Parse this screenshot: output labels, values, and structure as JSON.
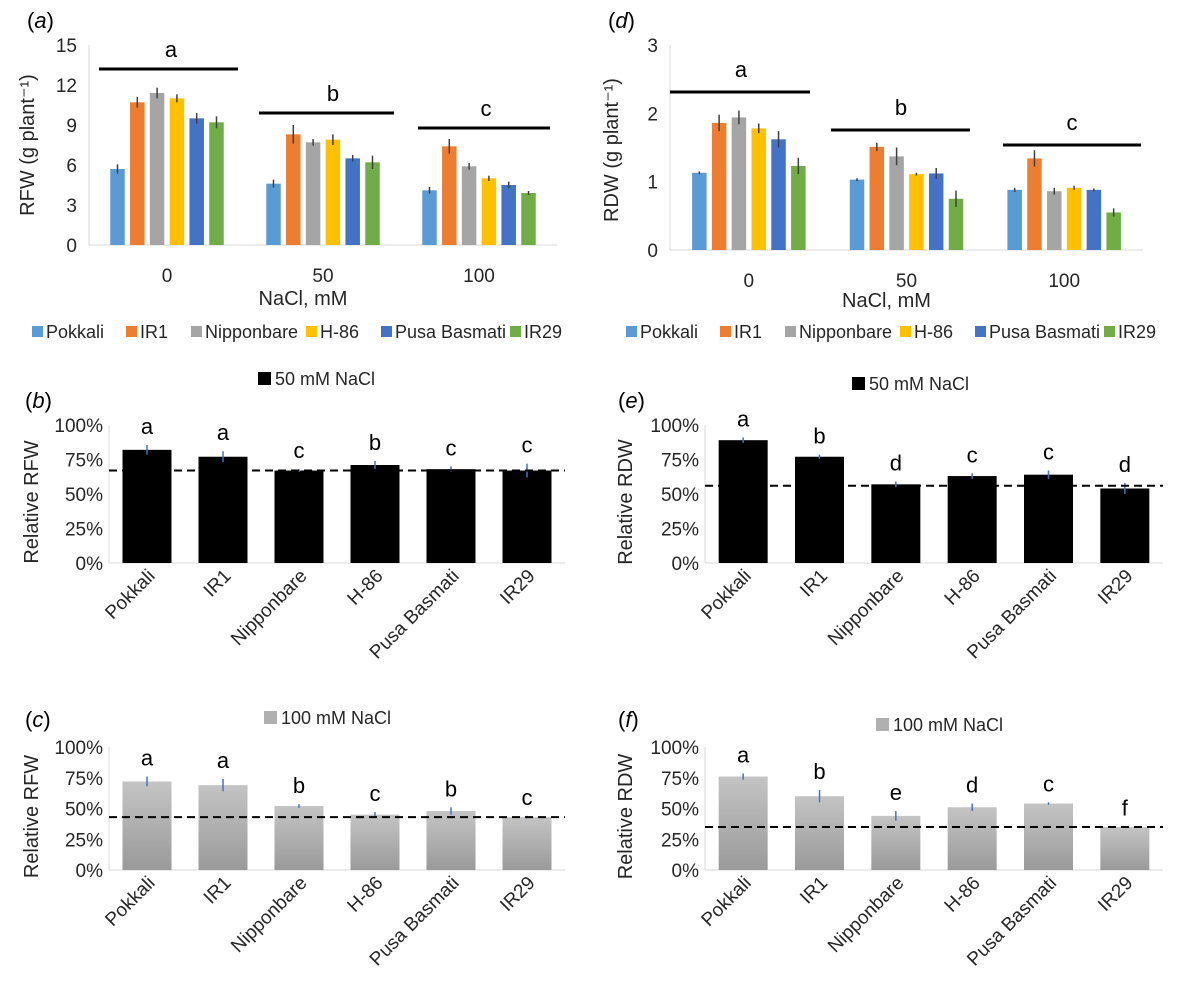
{
  "chart_data": [
    {
      "panel": "(a)",
      "type": "bar",
      "ylabel": "RFW (g plant⁻¹)",
      "xlabel": "NaCl, mM",
      "ylim": [
        0,
        15
      ],
      "yticks": [
        "0",
        "3",
        "6",
        "9",
        "12",
        "15"
      ],
      "categories": [
        "0",
        "50",
        "100"
      ],
      "group_letters": [
        "a",
        "b",
        "c"
      ],
      "series": [
        {
          "name": "Pokkali",
          "color": "#5B9BD5",
          "values": [
            5.7,
            4.6,
            4.1
          ],
          "err": [
            0.35,
            0.3,
            0.25
          ]
        },
        {
          "name": "IR1",
          "color": "#ED7D31",
          "values": [
            10.7,
            8.3,
            7.4
          ],
          "err": [
            0.4,
            0.7,
            0.55
          ]
        },
        {
          "name": "Nipponbare",
          "color": "#A5A5A5",
          "values": [
            11.4,
            7.7,
            5.9
          ],
          "err": [
            0.4,
            0.25,
            0.25
          ]
        },
        {
          "name": "H-86",
          "color": "#FFC000",
          "values": [
            11.0,
            7.9,
            5.0
          ],
          "err": [
            0.3,
            0.4,
            0.2
          ]
        },
        {
          "name": "Pusa Basmati",
          "color": "#4472C4",
          "values": [
            9.5,
            6.5,
            4.5
          ],
          "err": [
            0.4,
            0.25,
            0.25
          ]
        },
        {
          "name": "IR29",
          "color": "#70AD47",
          "values": [
            9.2,
            6.2,
            3.9
          ],
          "err": [
            0.45,
            0.5,
            0.15
          ]
        }
      ]
    },
    {
      "panel": "(d)",
      "type": "bar",
      "ylabel": "RDW (g plant⁻¹)",
      "xlabel": "NaCl, mM",
      "ylim": [
        0,
        3
      ],
      "yticks": [
        "0",
        "1",
        "2",
        "3"
      ],
      "categories": [
        "0",
        "50",
        "100"
      ],
      "group_letters": [
        "a",
        "b",
        "c"
      ],
      "series": [
        {
          "name": "Pokkali",
          "color": "#5B9BD5",
          "values": [
            1.13,
            1.03,
            0.88
          ],
          "err": [
            0.02,
            0.02,
            0.03
          ]
        },
        {
          "name": "IR1",
          "color": "#ED7D31",
          "values": [
            1.86,
            1.51,
            1.34
          ],
          "err": [
            0.12,
            0.06,
            0.12
          ]
        },
        {
          "name": "Nipponbare",
          "color": "#A5A5A5",
          "values": [
            1.94,
            1.37,
            0.86
          ],
          "err": [
            0.1,
            0.13,
            0.05
          ]
        },
        {
          "name": "H-86",
          "color": "#FFC000",
          "values": [
            1.78,
            1.11,
            0.91
          ],
          "err": [
            0.07,
            0.02,
            0.03
          ]
        },
        {
          "name": "Pusa Basmati",
          "color": "#4472C4",
          "values": [
            1.62,
            1.12,
            0.88
          ],
          "err": [
            0.12,
            0.08,
            0.02
          ]
        },
        {
          "name": "IR29",
          "color": "#70AD47",
          "values": [
            1.23,
            0.75,
            0.55
          ],
          "err": [
            0.12,
            0.12,
            0.06
          ]
        }
      ]
    },
    {
      "panel": "(b)",
      "type": "bar",
      "legend": "50 mM NaCl",
      "fill": "#000000",
      "ylabel": "Relative RFW",
      "ylim": [
        0,
        1
      ],
      "yticks": [
        "0%",
        "25%",
        "50%",
        "75%",
        "100%"
      ],
      "categories": [
        "Pokkali",
        "IR1",
        "Nipponbare",
        "H-86",
        "Pusa Basmati",
        "IR29"
      ],
      "values": [
        0.82,
        0.77,
        0.67,
        0.71,
        0.68,
        0.67
      ],
      "err": [
        0.035,
        0.04,
        0.01,
        0.03,
        0.02,
        0.05
      ],
      "letters": [
        "a",
        "a",
        "c",
        "b",
        "c",
        "c"
      ],
      "reference_line": 0.67
    },
    {
      "panel": "(e)",
      "type": "bar",
      "legend": "50 mM NaCl",
      "fill": "#000000",
      "ylabel": "Relative RDW",
      "ylim": [
        0,
        1
      ],
      "yticks": [
        "0%",
        "25%",
        "50%",
        "75%",
        "100%"
      ],
      "categories": [
        "Pokkali",
        "IR1",
        "Nipponbare",
        "H-86",
        "Pusa Basmati",
        "IR29"
      ],
      "values": [
        0.89,
        0.77,
        0.57,
        0.63,
        0.64,
        0.54
      ],
      "err": [
        0.02,
        0.015,
        0.02,
        0.02,
        0.03,
        0.04
      ],
      "letters": [
        "a",
        "b",
        "d",
        "c",
        "c",
        "d"
      ],
      "reference_line": 0.56
    },
    {
      "panel": "(c)",
      "type": "bar",
      "legend": "100 mM NaCl",
      "fill": "#B0B0B0",
      "ylabel": "Relative RFW",
      "ylim": [
        0,
        1
      ],
      "yticks": [
        "0%",
        "25%",
        "50%",
        "75%",
        "100%"
      ],
      "categories": [
        "Pokkali",
        "IR1",
        "Nipponbare",
        "H-86",
        "Pusa Basmati",
        "IR29"
      ],
      "values": [
        0.72,
        0.69,
        0.52,
        0.45,
        0.48,
        0.43
      ],
      "err": [
        0.04,
        0.05,
        0.015,
        0.02,
        0.03,
        0.01
      ],
      "letters": [
        "a",
        "a",
        "b",
        "c",
        "b",
        "c"
      ],
      "reference_line": 0.43
    },
    {
      "panel": "(f)",
      "type": "bar",
      "legend": "100 mM NaCl",
      "fill": "#B0B0B0",
      "ylabel": "Relative RDW",
      "ylim": [
        0,
        1
      ],
      "yticks": [
        "0%",
        "25%",
        "50%",
        "75%",
        "100%"
      ],
      "categories": [
        "Pokkali",
        "IR1",
        "Nipponbare",
        "H-86",
        "Pusa Basmati",
        "IR29"
      ],
      "values": [
        0.76,
        0.6,
        0.44,
        0.51,
        0.54,
        0.35
      ],
      "err": [
        0.025,
        0.05,
        0.04,
        0.03,
        0.01,
        0.005
      ],
      "letters": [
        "a",
        "b",
        "e",
        "d",
        "c",
        "f"
      ],
      "reference_line": 0.35
    }
  ]
}
